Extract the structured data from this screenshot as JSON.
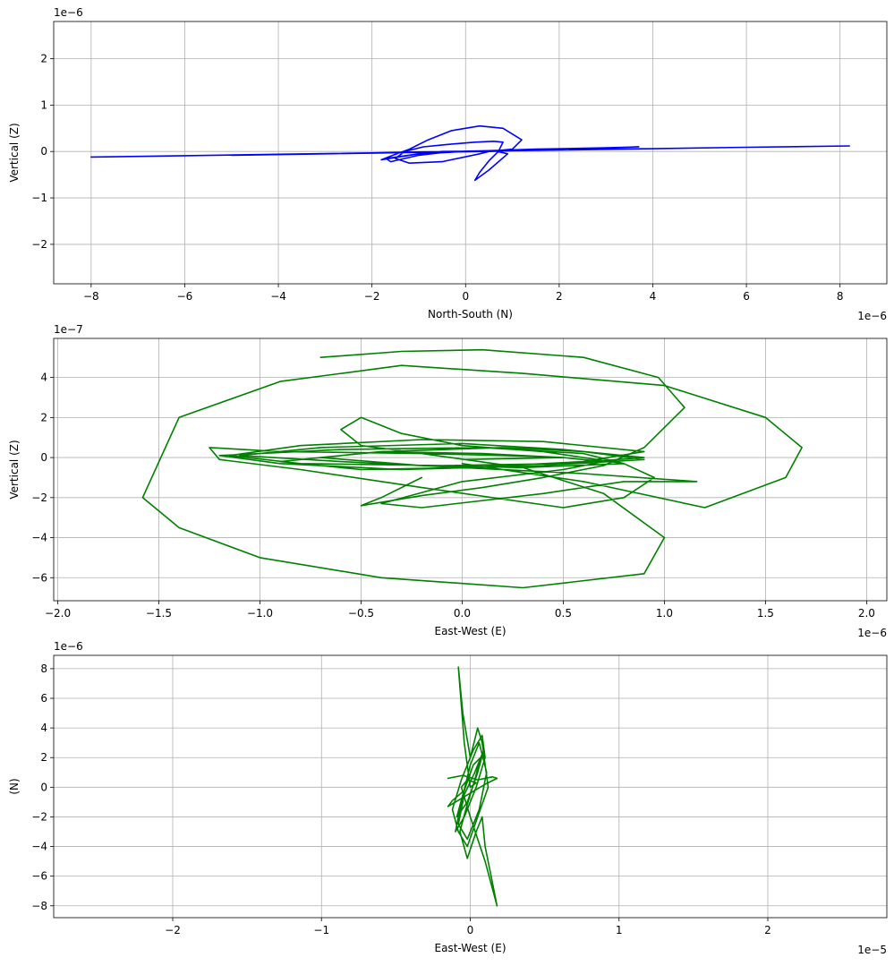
{
  "chart_data": [
    {
      "type": "line",
      "xlabel": "North-South (N)",
      "ylabel": "Vertical (Z)",
      "x_offset": "1e−6",
      "y_offset": "1e−6",
      "xlim": [
        -8.8,
        9.0
      ],
      "ylim": [
        -2.85,
        2.8
      ],
      "xticks": [
        -8,
        -6,
        -4,
        -2,
        0,
        2,
        4,
        6,
        8
      ],
      "xtick_labels": [
        "−8",
        "−6",
        "−4",
        "−2",
        "0",
        "2",
        "4",
        "6",
        "8"
      ],
      "yticks": [
        -2,
        -1,
        0,
        1,
        2
      ],
      "ytick_labels": [
        "−2",
        "−1",
        "0",
        "1",
        "2"
      ],
      "grid": true,
      "color": "#0000ff",
      "series": [
        {
          "x": [
            -8.0,
            -6.0,
            -4.0,
            -2.0,
            -1.0,
            0.0,
            1.0,
            2.0,
            4.0,
            6.0,
            8.2,
            6.0,
            4.0,
            2.0,
            0.5,
            -0.5,
            -1.0,
            -1.8,
            -1.6,
            -1.2,
            -0.8,
            -0.3,
            0.3,
            0.8,
            1.2,
            1.0,
            0.5,
            0.3,
            -0.5,
            -1.2,
            -1.5,
            -1.3,
            -0.9,
            -0.4,
            0.2,
            0.6,
            0.8,
            0.7,
            0.5,
            0.3,
            0.2,
            0.5,
            0.9,
            0.6,
            -0.3,
            -1.0,
            -1.6,
            -1.7,
            -1.0,
            0.0,
            1.5,
            3.0,
            3.7,
            2.0,
            0.0,
            -2.0,
            -4.0,
            -5.0,
            -3.0,
            -1.0,
            0.0,
            1.0,
            2.0,
            0.5,
            -1.0,
            0.0
          ],
          "y": [
            -0.12,
            -0.09,
            -0.06,
            -0.03,
            -0.01,
            0.0,
            0.02,
            0.04,
            0.06,
            0.09,
            0.12,
            0.09,
            0.06,
            0.03,
            0.01,
            0.0,
            -0.05,
            -0.18,
            -0.1,
            0.05,
            0.25,
            0.45,
            0.55,
            0.5,
            0.25,
            0.05,
            0.0,
            -0.05,
            -0.22,
            -0.25,
            -0.15,
            0.0,
            0.1,
            0.15,
            0.2,
            0.22,
            0.2,
            0.0,
            -0.2,
            -0.45,
            -0.62,
            -0.4,
            -0.05,
            0.02,
            0.0,
            -0.08,
            -0.22,
            -0.15,
            -0.05,
            0.0,
            0.05,
            0.08,
            0.1,
            0.04,
            0.0,
            -0.03,
            -0.06,
            -0.08,
            -0.05,
            -0.02,
            0.0,
            0.03,
            0.05,
            0.0,
            -0.02,
            0.0
          ]
        }
      ]
    },
    {
      "type": "line",
      "xlabel": "East-West (E)",
      "ylabel": "Vertical (Z)",
      "x_offset": "1e−6",
      "y_offset": "1e−7",
      "xlim": [
        -2.02,
        2.1
      ],
      "ylim": [
        -7.15,
        5.95
      ],
      "xticks": [
        -2.0,
        -1.5,
        -1.0,
        -0.5,
        0.0,
        0.5,
        1.0,
        1.5,
        2.0
      ],
      "xtick_labels": [
        "−2.0",
        "−1.5",
        "−1.0",
        "−0.5",
        "0.0",
        "0.5",
        "1.0",
        "1.5",
        "2.0"
      ],
      "yticks": [
        -6,
        -4,
        -2,
        0,
        2,
        4
      ],
      "ytick_labels": [
        "−6",
        "−4",
        "−2",
        "0",
        "2",
        "4"
      ],
      "grid": true,
      "color": "#008000",
      "series": [
        {
          "x": [
            0.0,
            0.6,
            1.2,
            1.6,
            1.68,
            1.5,
            1.0,
            0.3,
            -0.3,
            -0.9,
            -1.4,
            -1.58,
            -1.4,
            -1.0,
            -0.4,
            0.3,
            0.9,
            1.0,
            0.7,
            0.3,
            -0.2,
            -0.9,
            -1.25,
            -1.2,
            -0.8,
            -0.2,
            0.5,
            0.8,
            0.95,
            0.8,
            0.4,
            0.0,
            -0.3,
            -0.5,
            -0.6,
            -0.5,
            -0.2,
            0.2,
            0.5,
            0.7,
            0.5,
            0.0,
            -0.4,
            -0.2,
            0.4,
            0.8,
            1.16,
            0.6,
            0.0,
            -0.6,
            -1.1,
            -0.7,
            0.0,
            0.5,
            0.9,
            0.5,
            -0.1,
            -0.8,
            -1.15,
            -0.8,
            -0.2,
            0.4,
            0.9,
            0.6,
            0.0,
            -0.5,
            -0.9,
            -0.4,
            0.2,
            0.6,
            0.9,
            0.4,
            -0.3,
            -0.9,
            -1.2,
            -0.6,
            0.1,
            0.6,
            0.8,
            0.3,
            -0.2,
            -0.7,
            -0.4,
            0.1,
            0.5,
            0.0
          ],
          "y": [
            -0.3,
            -1.2,
            -2.5,
            -1.0,
            0.5,
            2.0,
            3.6,
            4.2,
            4.6,
            3.8,
            2.0,
            -2.0,
            -3.5,
            -5.0,
            -6.0,
            -6.5,
            -5.8,
            -4.0,
            -1.8,
            -0.5,
            0.2,
            0.3,
            0.5,
            -0.1,
            -0.6,
            -1.5,
            -2.5,
            -2.0,
            -1.0,
            -0.3,
            0.3,
            0.6,
            1.2,
            2.0,
            1.4,
            0.6,
            0.2,
            0.1,
            0.0,
            -0.2,
            -0.6,
            -1.2,
            -2.3,
            -2.5,
            -1.8,
            -1.2,
            -1.2,
            -0.8,
            -0.5,
            -0.2,
            0.1,
            0.5,
            0.7,
            0.4,
            0.0,
            -0.3,
            -0.4,
            -0.3,
            0.1,
            0.6,
            0.9,
            0.8,
            0.3,
            -0.2,
            -0.5,
            -0.6,
            -0.2,
            0.3,
            0.5,
            0.3,
            -0.1,
            -0.4,
            -0.6,
            -0.3,
            0.1,
            0.4,
            0.5,
            0.2,
            -0.3,
            -0.5,
            -0.4,
            0.0,
            0.3,
            0.2,
            0.0,
            -0.1
          ]
        },
        {
          "x": [
            -0.7,
            -0.3,
            0.1,
            0.6,
            0.97,
            1.1,
            0.9,
            0.7,
            0.4,
            0.1,
            -0.2,
            -0.5,
            -0.4,
            -0.2
          ],
          "y": [
            5.0,
            5.3,
            5.38,
            5.0,
            4.0,
            2.5,
            0.5,
            -0.4,
            -1.0,
            -1.5,
            -1.9,
            -2.4,
            -2.0,
            -1.0
          ]
        }
      ]
    },
    {
      "type": "line",
      "xlabel": "East-West (E)",
      "ylabel": "(N)",
      "x_offset": "1e−5",
      "y_offset": "1e−6",
      "xlim": [
        -2.8,
        2.8
      ],
      "ylim": [
        -8.8,
        8.9
      ],
      "xticks": [
        -2,
        -1,
        0,
        1,
        2
      ],
      "xtick_labels": [
        "−2",
        "−1",
        "0",
        "1",
        "2"
      ],
      "yticks": [
        -8,
        -6,
        -4,
        -2,
        0,
        2,
        4,
        6,
        8
      ],
      "ytick_labels": [
        "−8",
        "−6",
        "−4",
        "−2",
        "0",
        "2",
        "4",
        "6",
        "8"
      ],
      "grid": true,
      "color": "#008000",
      "series": [
        {
          "x": [
            0.0,
            -0.04,
            -0.08,
            -0.05,
            0.0,
            0.05,
            0.08,
            0.12,
            0.05,
            -0.02,
            -0.08,
            -0.12,
            -0.06,
            0.02,
            0.08,
            0.1,
            0.04,
            -0.04,
            -0.1,
            -0.06,
            0.0,
            0.06,
            0.11,
            0.06,
            -0.02,
            -0.08,
            -0.04,
            0.03,
            0.09,
            0.05,
            -0.02,
            -0.09,
            -0.05,
            0.02,
            0.07,
            0.03,
            -0.03,
            -0.07,
            -0.02,
            0.04,
            0.08,
            0.1,
            0.14,
            0.18,
            0.1,
            0.0,
            -0.06,
            -0.02,
            0.04,
            0.0
          ],
          "y": [
            0.0,
            3.0,
            8.1,
            5.0,
            2.0,
            4.0,
            3.0,
            0.0,
            -2.0,
            -4.0,
            -3.0,
            -1.5,
            0.5,
            2.5,
            3.5,
            2.0,
            0.0,
            -2.0,
            -3.0,
            -1.0,
            1.5,
            3.0,
            1.0,
            -1.5,
            -3.5,
            -2.5,
            -0.5,
            1.0,
            2.5,
            1.0,
            -1.0,
            -2.0,
            -0.5,
            1.5,
            2.0,
            0.5,
            -1.5,
            -3.0,
            -4.8,
            -3.0,
            -2.0,
            -4.0,
            -6.0,
            -8.0,
            -5.0,
            -2.0,
            0.0,
            0.5,
            0.3,
            0.0
          ]
        },
        {
          "x": [
            -0.15,
            -0.05,
            0.05,
            0.15,
            0.18,
            0.1,
            0.0,
            -0.1,
            -0.15,
            -0.12,
            -0.05
          ],
          "y": [
            0.6,
            0.8,
            0.5,
            0.7,
            0.6,
            0.2,
            -0.4,
            -1.0,
            -1.3,
            -0.9,
            -0.3
          ]
        }
      ]
    }
  ]
}
